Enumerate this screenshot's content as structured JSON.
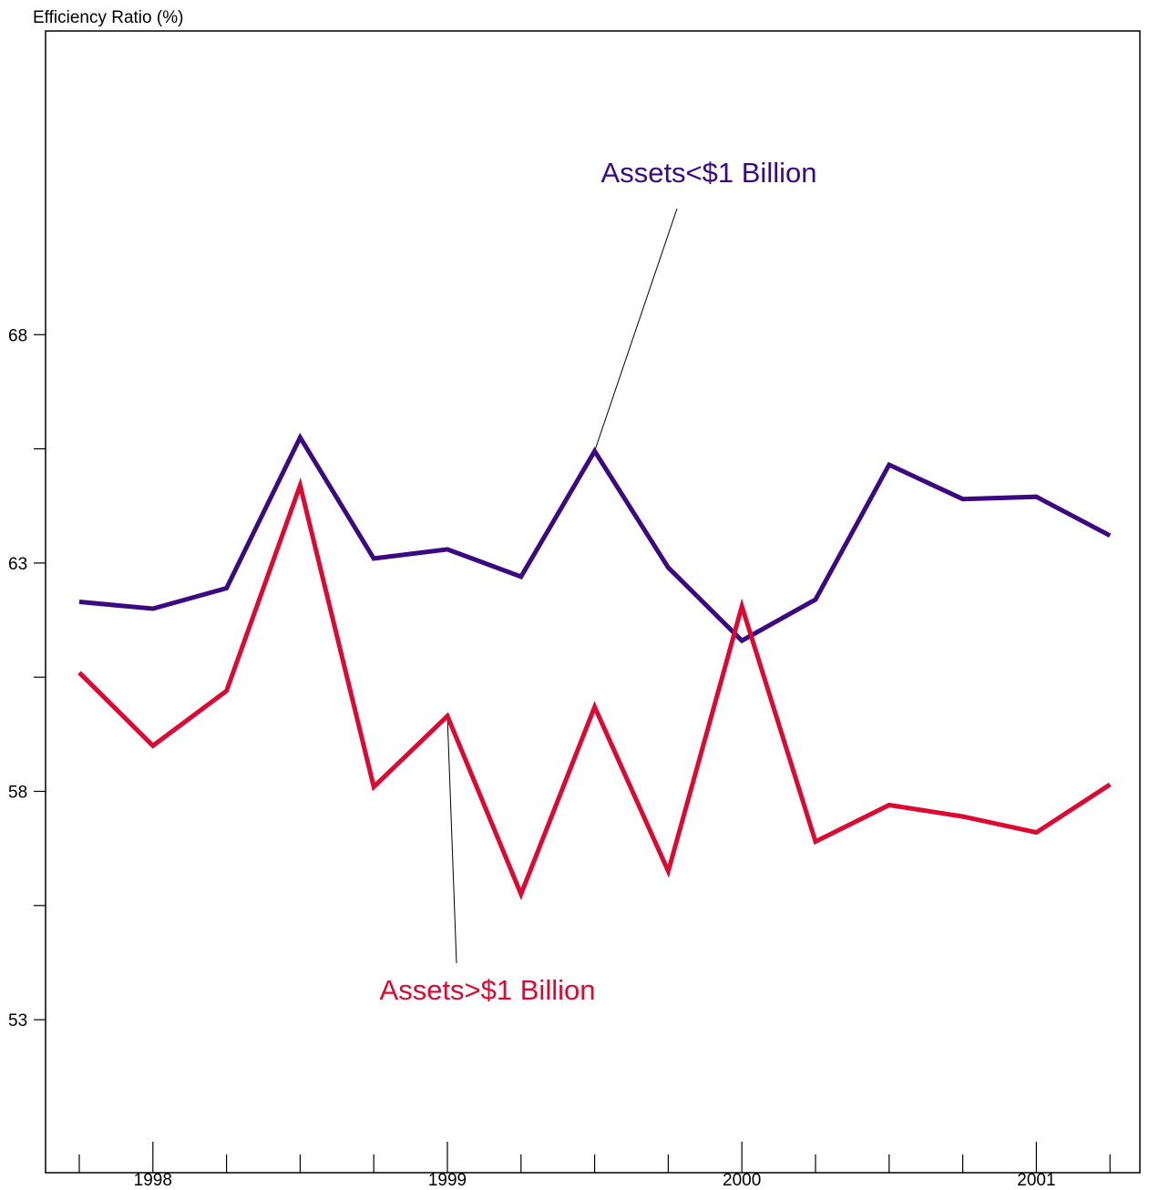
{
  "chart_data": {
    "type": "line",
    "title": "",
    "ylabel": "Efficiency Ratio (%)",
    "xlabel": "",
    "ylim": [
      49.65,
      74.65
    ],
    "y_ticks_major": [
      53,
      58,
      63,
      68
    ],
    "y_ticks_minor": [
      55.5,
      60.5,
      65.5
    ],
    "x_labels": [
      {
        "label": "1998",
        "quarter_index": 1
      },
      {
        "label": "1999",
        "quarter_index": 5
      },
      {
        "label": "2000",
        "quarter_index": 9
      },
      {
        "label": "2001",
        "quarter_index": 13
      }
    ],
    "x": [
      "Q4 1997",
      "Q1 1998",
      "Q2 1998",
      "Q3 1998",
      "Q4 1998",
      "Q1 1999",
      "Q2 1999",
      "Q3 1999",
      "Q4 1999",
      "Q1 2000",
      "Q2 2000",
      "Q3 2000",
      "Q4 2000",
      "Q1 2001",
      "Q2 2001"
    ],
    "series": [
      {
        "name": "Assets<$1 Billion",
        "color": "#3b0a80",
        "values": [
          62.15,
          62.0,
          62.45,
          65.75,
          63.1,
          63.3,
          62.7,
          65.45,
          62.9,
          61.3,
          62.2,
          65.15,
          64.4,
          64.45,
          63.6
        ]
      },
      {
        "name": "Assets>$1 Billion",
        "color": "#dc0a32",
        "values": [
          60.6,
          59.0,
          60.2,
          64.7,
          58.1,
          59.65,
          55.75,
          59.85,
          56.25,
          62.05,
          56.9,
          57.7,
          57.45,
          57.1,
          58.15
        ]
      }
    ],
    "annotations": [
      {
        "text": "Assets<$1 Billion",
        "series_index": 0,
        "point_index": 7,
        "color": "#3b0a80"
      },
      {
        "text": "Assets>$1 Billion",
        "series_index": 1,
        "point_index": 5,
        "color": "#dc0a32"
      }
    ],
    "grid": false,
    "legend": "none"
  }
}
